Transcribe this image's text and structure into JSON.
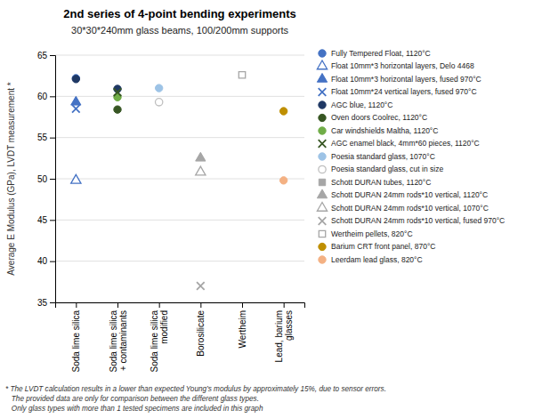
{
  "chart_data": {
    "type": "scatter",
    "title": "2nd series of 4-point bending experiments",
    "subtitle": "30*30*240mm glass beams, 100/200mm supports",
    "ylabel": "Average E Modulus (GPa), LVDT measurement *",
    "ylim": [
      35,
      65
    ],
    "yticks": [
      35,
      40,
      45,
      50,
      55,
      60,
      65
    ],
    "grid": true,
    "legend": "right",
    "annotations": [
      "* The LVDT calculation results in a lower than expected Young’s modulus by approximately 15%, due to sensor errors.",
      "   The provided data are only for comparison between the different glass types.",
      "   Only glass types with more than 1 tested specimens are included in this graph"
    ],
    "categories": [
      "Soda lime silica",
      "Soda lime silica\n+ contaminants",
      "Soda lime silica\nmodified",
      "Borosilicate",
      "Wertheim",
      "Lead, barium\nglasses"
    ],
    "series": [
      {
        "name": "Fully Tempered Float, 1120°C",
        "color": "#4472C4",
        "marker": "circle",
        "values": [
          62.2,
          null,
          null,
          null,
          null,
          null
        ]
      },
      {
        "name": "Float 10mm*3 horizontal layers, Delo 4468",
        "color": "#4472C4",
        "marker": "triangle-open",
        "values": [
          49.8,
          null,
          null,
          null,
          null,
          null
        ]
      },
      {
        "name": "Float 10mm*3 horizontal layers, fused 970°C",
        "color": "#4472C4",
        "marker": "triangle",
        "values": [
          59.3,
          null,
          null,
          null,
          null,
          null
        ]
      },
      {
        "name": "Float 10mm*24 vertical layers, fused 970°C",
        "color": "#4472C4",
        "marker": "x",
        "values": [
          58.5,
          null,
          null,
          null,
          null,
          null
        ]
      },
      {
        "name": "AGC blue, 1120°C",
        "color": "#1F3864",
        "marker": "circle",
        "values": [
          62.1,
          60.9,
          null,
          null,
          null,
          null
        ]
      },
      {
        "name": "Oven doors Coolrec, 1120°C",
        "color": "#375623",
        "marker": "circle",
        "values": [
          null,
          58.4,
          null,
          null,
          null,
          null
        ]
      },
      {
        "name": "Car windshields Maltha, 1120°C",
        "color": "#70AD47",
        "marker": "circle",
        "values": [
          null,
          59.9,
          null,
          null,
          null,
          null
        ]
      },
      {
        "name": "AGC enamel black, 4mm*60 pieces, 1120°C",
        "color": "#375623",
        "marker": "x",
        "values": [
          null,
          60.5,
          null,
          null,
          null,
          null
        ]
      },
      {
        "name": "Poesia standard glass, 1070°C",
        "color": "#9DC3E6",
        "marker": "circle",
        "values": [
          null,
          null,
          61.0,
          null,
          null,
          null
        ]
      },
      {
        "name": "Poesia standard glass, cut in size",
        "color": "#BFBFBF",
        "marker": "circle-open",
        "values": [
          null,
          null,
          59.3,
          null,
          null,
          null
        ]
      },
      {
        "name": "Schott DURAN tubes, 1120°C",
        "color": "#A6A6A6",
        "marker": "square",
        "values": [
          null,
          null,
          null,
          null,
          null,
          null
        ]
      },
      {
        "name": "Schott DURAN 24mm rods*10 vertical, 1120°C",
        "color": "#A6A6A6",
        "marker": "triangle",
        "values": [
          null,
          null,
          null,
          52.5,
          null,
          null
        ]
      },
      {
        "name": "Schott DURAN 24mm rods*10 vertical, 1070°C",
        "color": "#A6A6A6",
        "marker": "triangle-open",
        "values": [
          null,
          null,
          null,
          50.8,
          null,
          null
        ]
      },
      {
        "name": "Schott DURAN 24mm rods*10 vertical, fused 970°C",
        "color": "#A6A6A6",
        "marker": "x",
        "values": [
          null,
          null,
          null,
          37.0,
          null,
          null
        ]
      },
      {
        "name": "Wertheim pellets, 820°C",
        "color": "#A6A6A6",
        "marker": "square-open",
        "values": [
          null,
          null,
          null,
          null,
          62.6,
          null
        ]
      },
      {
        "name": "Barium CRT front panel, 870°C",
        "color": "#BF8F00",
        "marker": "circle",
        "values": [
          null,
          null,
          null,
          null,
          null,
          58.2
        ]
      },
      {
        "name": "Leerdam lead glass, 820°C",
        "color": "#F4B183",
        "marker": "circle",
        "values": [
          null,
          null,
          null,
          null,
          null,
          49.8
        ]
      }
    ]
  }
}
